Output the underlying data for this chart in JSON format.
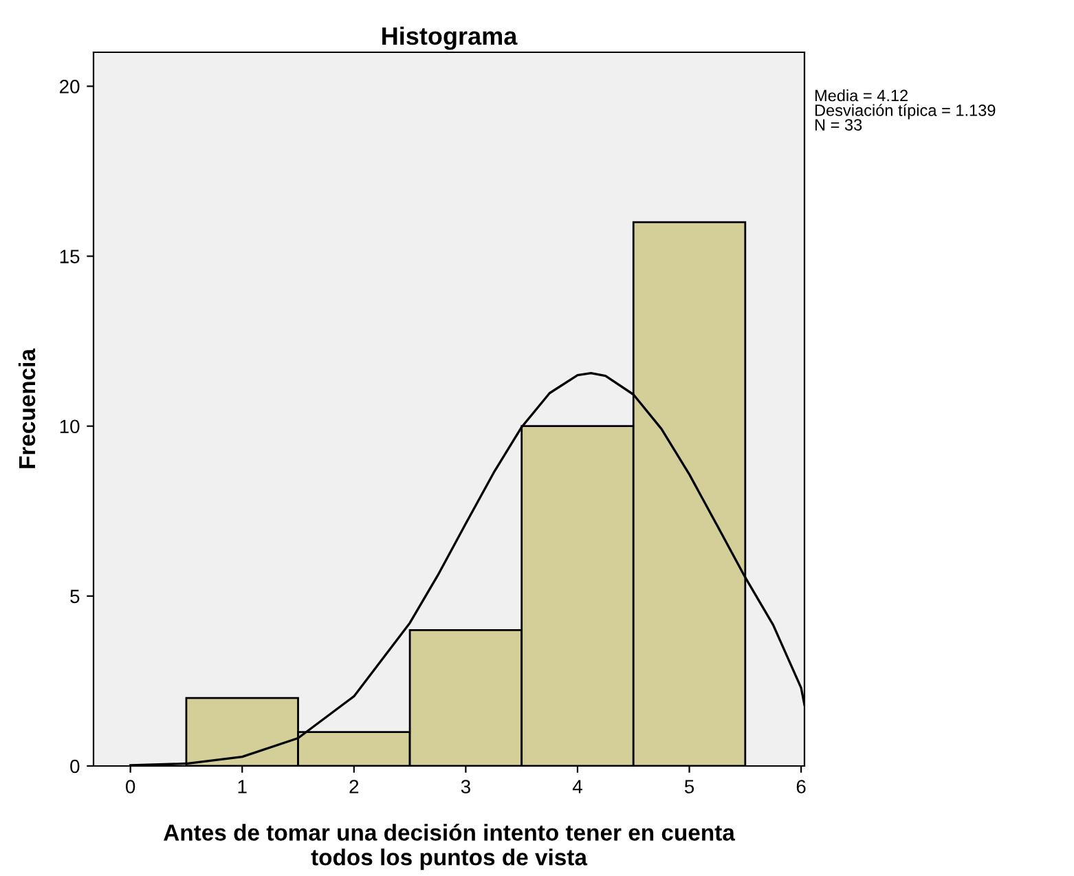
{
  "chart_data": {
    "type": "histogram",
    "title": "Histograma",
    "xlabel": "Antes de tomar una decisión intento tener en cuenta\ntodos los puntos de vista",
    "ylabel": "Frecuencia",
    "bins": [
      0.5,
      1.5,
      2.5,
      3.5,
      4.5,
      5.5
    ],
    "values": [
      2,
      1,
      4,
      10,
      16
    ],
    "color": "#d4cf98",
    "series": [
      {
        "type": "line",
        "color": "#000000",
        "x": [
          0,
          0.5,
          1,
          1.5,
          2,
          2.5,
          2.75,
          3,
          3.25,
          3.5,
          3.75,
          4,
          4.12,
          4.25,
          4.5,
          4.75,
          5,
          5.25,
          5.5,
          5.75,
          6,
          6.03
        ],
        "values": [
          0.02,
          0.07,
          0.27,
          0.82,
          2.05,
          4.21,
          5.61,
          7.13,
          8.63,
          9.97,
          10.97,
          11.5,
          11.56,
          11.48,
          10.93,
          9.92,
          8.58,
          7.07,
          5.55,
          4.15,
          2.3,
          1.8
        ]
      }
    ],
    "xlim": [
      -0.33,
      6.03
    ],
    "ylim": [
      0,
      21
    ],
    "xticks": [
      0,
      1,
      2,
      3,
      4,
      5,
      6
    ],
    "yticks": [
      0,
      5,
      10,
      15,
      20
    ],
    "grid": false,
    "annotations": [
      "Media = 4.12\nDesviación típica = 1.139\nN = 33"
    ]
  }
}
